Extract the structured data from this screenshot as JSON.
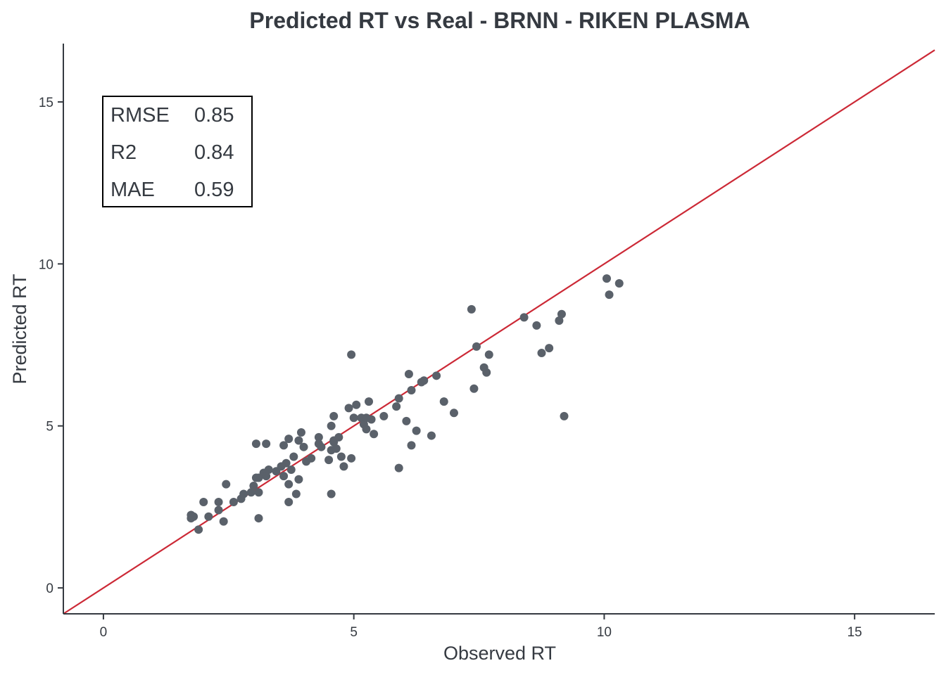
{
  "chart_data": {
    "type": "scatter",
    "title": "Predicted RT vs Real - BRNN - RIKEN PLASMA",
    "xlabel": "Observed RT",
    "ylabel": "Predicted RT",
    "xlim": [
      -0.8,
      16.6
    ],
    "ylim": [
      -0.8,
      16.8
    ],
    "x_ticks": [
      0,
      5,
      10,
      15
    ],
    "y_ticks": [
      0,
      5,
      10,
      15
    ],
    "grid": false,
    "reference_line": {
      "type": "identity",
      "slope": 1,
      "intercept": 0,
      "color": "#cc2936"
    },
    "point_color": "#5a616a",
    "stats_table": {
      "position": "top-left",
      "rows": [
        {
          "label": "RMSE",
          "value": "0.85"
        },
        {
          "label": "R2",
          "value": "0.84"
        },
        {
          "label": "MAE",
          "value": "0.59"
        }
      ]
    },
    "series": [
      {
        "x": [
          1.75,
          1.8,
          1.75,
          1.8,
          1.9,
          2.0,
          2.1,
          2.3,
          2.3,
          2.4,
          2.45,
          2.6,
          2.75,
          2.8,
          2.95,
          3.0,
          3.05,
          3.1,
          3.1,
          3.2,
          3.25,
          3.3,
          3.45,
          3.55,
          3.6,
          3.6,
          3.65,
          3.7,
          3.7,
          3.75,
          3.8,
          3.85,
          3.9,
          3.9,
          3.95,
          4.0,
          4.05,
          4.15,
          4.3,
          4.3,
          4.5,
          4.55,
          4.55,
          4.6,
          4.6,
          4.6,
          4.65,
          4.7,
          4.75,
          4.8,
          4.9,
          4.95,
          5.0,
          5.05,
          5.15,
          5.2,
          5.25,
          5.3,
          5.35,
          5.4,
          5.6,
          5.85,
          5.9,
          5.9,
          6.05,
          6.1,
          6.15,
          6.15,
          6.25,
          6.35,
          6.4,
          6.55,
          6.65,
          6.8,
          7.0,
          7.35,
          7.4,
          7.45,
          7.6,
          7.65,
          7.7,
          8.4,
          8.65,
          8.75,
          8.9,
          9.1,
          9.15,
          9.2,
          10.05,
          10.1,
          10.3,
          4.95,
          3.05,
          3.25,
          4.55,
          3.1,
          5.25,
          4.35,
          3.7
        ],
        "y": [
          2.15,
          2.2,
          2.25,
          2.2,
          1.8,
          2.65,
          2.2,
          2.65,
          2.4,
          2.05,
          3.2,
          2.65,
          2.75,
          2.9,
          2.95,
          3.15,
          3.4,
          2.95,
          2.15,
          3.55,
          3.45,
          3.65,
          3.6,
          3.75,
          3.45,
          4.4,
          3.85,
          3.2,
          2.65,
          3.65,
          4.05,
          2.9,
          3.35,
          4.55,
          4.8,
          4.35,
          3.9,
          4.0,
          4.65,
          4.45,
          3.95,
          5.0,
          4.25,
          4.55,
          5.3,
          4.5,
          4.3,
          4.65,
          4.05,
          3.75,
          5.55,
          4.0,
          5.25,
          5.65,
          5.25,
          5.05,
          4.9,
          5.75,
          5.2,
          4.75,
          5.3,
          5.6,
          3.7,
          5.85,
          5.15,
          6.6,
          4.4,
          6.1,
          4.85,
          6.35,
          6.4,
          4.7,
          6.55,
          5.75,
          5.4,
          8.6,
          6.15,
          7.45,
          6.8,
          6.65,
          7.2,
          8.35,
          8.1,
          7.25,
          7.4,
          8.25,
          8.45,
          5.3,
          9.55,
          9.05,
          9.4,
          7.2,
          4.45,
          4.45,
          2.9,
          3.4,
          5.25,
          4.35,
          4.6
        ]
      }
    ]
  }
}
